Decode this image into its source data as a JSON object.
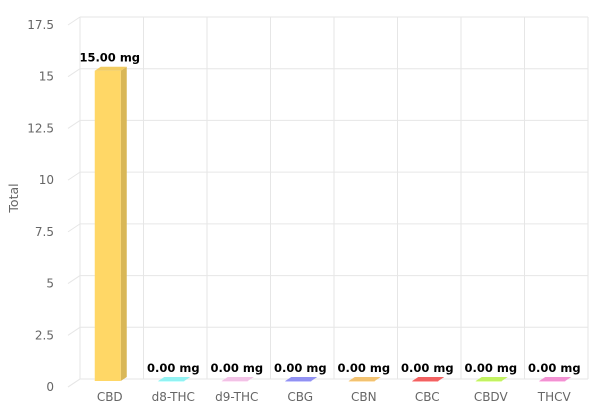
{
  "chart_data": {
    "type": "bar",
    "style": "3d-column",
    "ylabel": "Total",
    "ylim": [
      0,
      17.5
    ],
    "yticks": [
      "0",
      "2.5",
      "5",
      "7.5",
      "10",
      "12.5",
      "15",
      "17.5"
    ],
    "grid": true,
    "categories": [
      "CBD",
      "d8-THC",
      "d9-THC",
      "CBG",
      "CBN",
      "CBC",
      "CBDV",
      "THCV"
    ],
    "values": [
      15,
      0,
      0,
      0,
      0,
      0,
      0,
      0
    ],
    "data_labels": [
      "15.00 mg",
      "0.00 mg",
      "0.00 mg",
      "0.00 mg",
      "0.00 mg",
      "0.00 mg",
      "0.00 mg",
      "0.00 mg"
    ],
    "colors": [
      "#ffd766",
      "#99ffff",
      "#ffccf2",
      "#9999ff",
      "#ffcc77",
      "#ff6666",
      "#ccff66",
      "#ff99dd"
    ]
  }
}
